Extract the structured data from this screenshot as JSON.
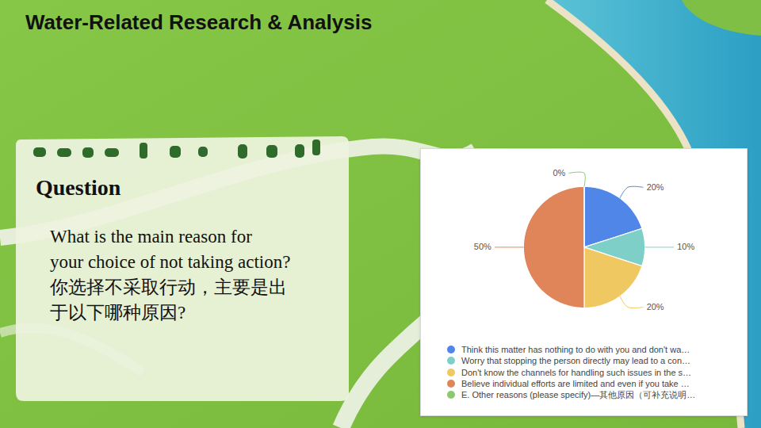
{
  "slide": {
    "title": "Water-Related Research & Analysis",
    "question_heading": "Question",
    "question_lines": [
      "What is the main reason for",
      "your choice of not taking action?",
      "你选择不采取行动，主要是出",
      "于以下哪种原因?"
    ]
  },
  "chart_data": {
    "type": "pie",
    "categories": [
      "Think this matter has nothing to do with you and don't wa…",
      "Worry that stopping the person directly may lead to a con…",
      "Don't know the channels for handling such issues in the s…",
      "Believe individual efforts are limited and even if you take …",
      "E. Other reasons (please specify)—其他原因（可补充说明…"
    ],
    "values": [
      20,
      10,
      20,
      50,
      0
    ],
    "value_labels": [
      "20%",
      "10%",
      "20%",
      "50%",
      "0%"
    ],
    "colors": [
      "#4f86e8",
      "#7fcfc9",
      "#f0c862",
      "#e0855a",
      "#8cc96d"
    ],
    "data_labels": true,
    "legend": "bottom"
  }
}
